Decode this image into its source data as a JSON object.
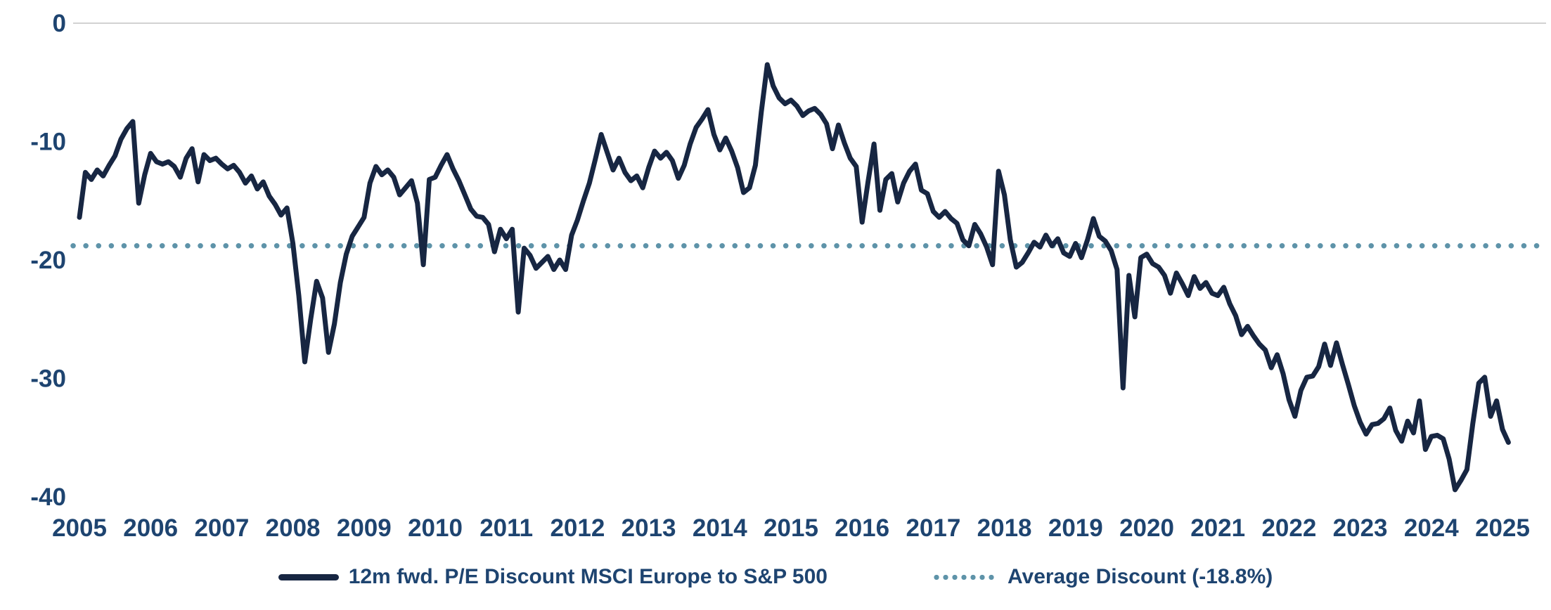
{
  "chart_data": {
    "type": "line",
    "title": "",
    "grid": "zero-line-only",
    "legend_position": "bottom",
    "x_axis": {
      "years": [
        2005,
        2006,
        2007,
        2008,
        2009,
        2010,
        2011,
        2012,
        2013,
        2014,
        2015,
        2016,
        2017,
        2018,
        2019,
        2020,
        2021,
        2022,
        2023,
        2024,
        2025
      ]
    },
    "y_axis": {
      "ticks": [
        0,
        -10,
        -20,
        -30,
        -40
      ],
      "tick_labels": [
        "0",
        "-10",
        "-20",
        "-30",
        "-40"
      ],
      "range": [
        -40,
        0
      ],
      "unit": "%"
    },
    "series": [
      {
        "name": "12m fwd. P/E Discount MSCI Europe to S&P 500",
        "color": "#172642",
        "style": "solid",
        "frequency": "monthly",
        "start": {
          "year": 2005,
          "month": 1
        },
        "end": {
          "year": 2025,
          "month": 2
        },
        "values": [
          -16.4,
          -12.6,
          -13.2,
          -12.4,
          -12.9,
          -12.0,
          -11.2,
          -9.8,
          -8.9,
          -8.3,
          -15.2,
          -12.8,
          -11.0,
          -11.7,
          -11.9,
          -11.7,
          -12.1,
          -13.0,
          -11.4,
          -10.6,
          -13.4,
          -11.1,
          -11.6,
          -11.4,
          -11.9,
          -12.3,
          -12.0,
          -12.6,
          -13.5,
          -12.9,
          -14.0,
          -13.4,
          -14.6,
          -15.3,
          -16.2,
          -15.6,
          -18.6,
          -23.0,
          -28.6,
          -25.0,
          -21.8,
          -23.2,
          -27.8,
          -25.4,
          -21.9,
          -19.5,
          -18.0,
          -17.2,
          -16.4,
          -13.5,
          -12.1,
          -12.8,
          -12.4,
          -13.0,
          -14.5,
          -13.9,
          -13.3,
          -15.2,
          -20.4,
          -13.2,
          -13.0,
          -12.0,
          -11.1,
          -12.3,
          -13.3,
          -14.5,
          -15.7,
          -16.3,
          -16.4,
          -17.0,
          -19.3,
          -17.4,
          -18.2,
          -17.4,
          -24.4,
          -19.0,
          -19.6,
          -20.7,
          -20.2,
          -19.7,
          -20.8,
          -20.0,
          -20.8,
          -17.9,
          -16.6,
          -15.0,
          -13.5,
          -11.5,
          -9.4,
          -10.9,
          -12.4,
          -11.4,
          -12.6,
          -13.3,
          -12.9,
          -13.9,
          -12.2,
          -10.8,
          -11.4,
          -10.9,
          -11.6,
          -13.1,
          -12.0,
          -10.2,
          -8.8,
          -8.1,
          -7.3,
          -9.4,
          -10.7,
          -9.7,
          -10.8,
          -12.2,
          -14.3,
          -13.9,
          -12.0,
          -7.5,
          -3.5,
          -5.3,
          -6.3,
          -6.8,
          -6.5,
          -7.0,
          -7.8,
          -7.4,
          -7.2,
          -7.7,
          -8.5,
          -10.6,
          -8.6,
          -10.1,
          -11.4,
          -12.1,
          -16.8,
          -13.4,
          -10.2,
          -15.8,
          -13.2,
          -12.7,
          -15.1,
          -13.5,
          -12.5,
          -11.9,
          -14.1,
          -14.4,
          -15.9,
          -16.4,
          -15.9,
          -16.5,
          -16.9,
          -18.3,
          -18.8,
          -17.0,
          -17.8,
          -18.9,
          -20.4,
          -12.5,
          -14.5,
          -18.3,
          -20.6,
          -20.2,
          -19.4,
          -18.5,
          -18.9,
          -17.9,
          -18.8,
          -18.2,
          -19.4,
          -19.7,
          -18.6,
          -19.8,
          -18.3,
          -16.5,
          -18.0,
          -18.4,
          -19.2,
          -20.8,
          -30.8,
          -21.3,
          -24.8,
          -19.8,
          -19.5,
          -20.3,
          -20.6,
          -21.3,
          -22.8,
          -21.1,
          -22.0,
          -23.0,
          -21.4,
          -22.4,
          -21.9,
          -22.8,
          -23.0,
          -22.3,
          -23.7,
          -24.7,
          -26.3,
          -25.6,
          -26.4,
          -27.1,
          -27.6,
          -29.1,
          -28.0,
          -29.6,
          -31.8,
          -33.2,
          -31.0,
          -29.9,
          -29.8,
          -29.0,
          -27.1,
          -28.9,
          -27.0,
          -28.8,
          -30.5,
          -32.3,
          -33.7,
          -34.7,
          -33.9,
          -33.8,
          -33.4,
          -32.5,
          -34.4,
          -35.3,
          -33.6,
          -34.6,
          -31.9,
          -36.0,
          -34.9,
          -34.8,
          -35.1,
          -36.8,
          -39.4,
          -38.6,
          -37.7,
          -33.8,
          -30.4,
          -29.9,
          -33.2,
          -31.9,
          -34.3,
          -35.4
        ]
      }
    ],
    "average_line": {
      "label": "Average Discount (-18.8%)",
      "value": -18.8,
      "color": "#5E93A9",
      "style": "dotted"
    }
  },
  "colors": {
    "series_line": "#172642",
    "average_dotted": "#5E93A9",
    "axis_text": "#1E4470",
    "zero_gridline": "#D2D2D2",
    "background": "#FFFFFF"
  }
}
